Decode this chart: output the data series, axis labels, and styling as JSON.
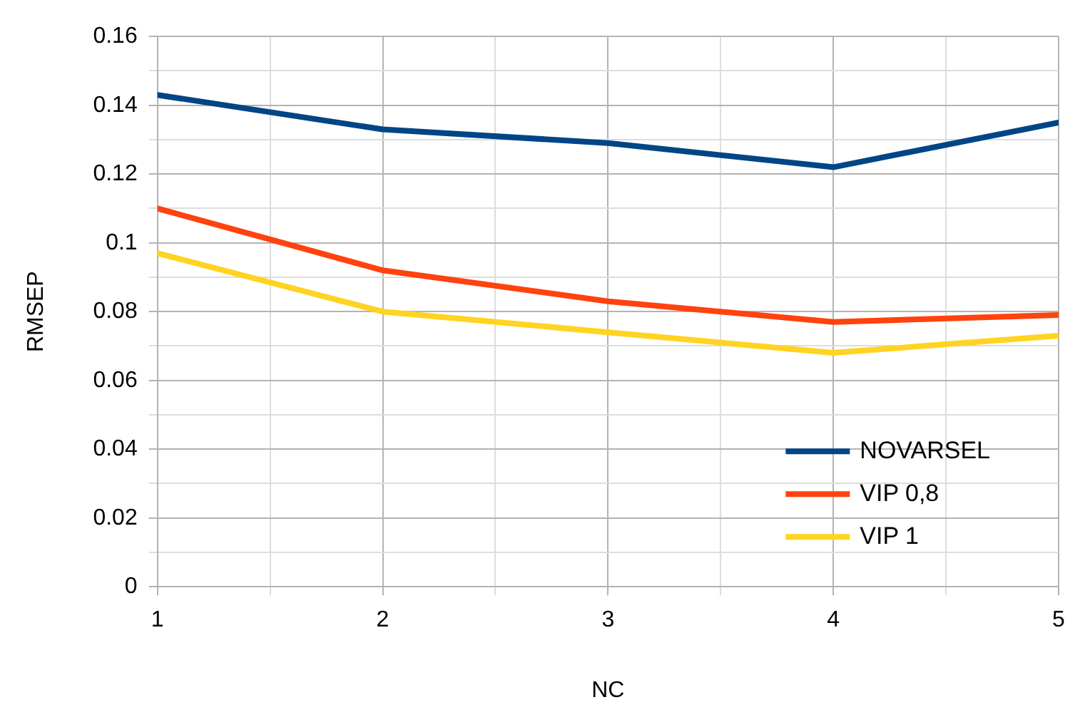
{
  "chart_data": {
    "type": "line",
    "xlabel": "NC",
    "ylabel": "RMSEP",
    "x": [
      1,
      2,
      3,
      4,
      5
    ],
    "series": [
      {
        "name": "NOVARSEL",
        "color": "#004586",
        "values": [
          0.143,
          0.133,
          0.129,
          0.122,
          0.135
        ]
      },
      {
        "name": "VIP 0,8",
        "color": "#ff420e",
        "values": [
          0.11,
          0.092,
          0.083,
          0.077,
          0.079
        ]
      },
      {
        "name": "VIP 1",
        "color": "#ffd320",
        "values": [
          0.097,
          0.08,
          0.074,
          0.068,
          0.073
        ]
      }
    ],
    "xlim": [
      1,
      5
    ],
    "xticks": [
      1,
      {
        "value": 1.5,
        "label": null
      },
      2,
      {
        "value": 2.5,
        "label": null
      },
      3,
      {
        "value": 3.5,
        "label": null
      },
      4,
      {
        "value": 4.5,
        "label": null
      },
      5
    ],
    "ylim": [
      0,
      0.16
    ],
    "yticks": [
      0,
      {
        "value": 0.01,
        "label": null
      },
      0.02,
      {
        "value": 0.03,
        "label": null
      },
      0.04,
      {
        "value": 0.05,
        "label": null
      },
      0.06,
      {
        "value": 0.07,
        "label": null
      },
      0.08,
      {
        "value": 0.09,
        "label": null
      },
      0.1,
      {
        "value": 0.11,
        "label": null
      },
      0.12,
      {
        "value": 0.13,
        "label": null
      },
      0.14,
      {
        "value": 0.15,
        "label": null
      },
      0.16
    ],
    "grid": true,
    "legend": "bottom right",
    "marker": "none",
    "line_style": "solid"
  }
}
